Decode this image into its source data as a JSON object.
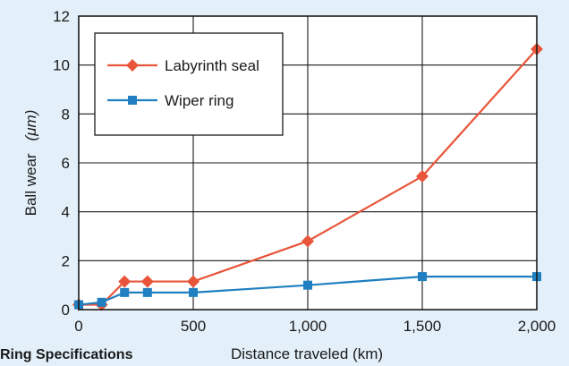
{
  "caption": "Ring Specifications",
  "chart_data": {
    "type": "line",
    "xlabel": "Distance traveled (km)",
    "ylabel_main": "Ball wear",
    "ylabel_unit": "(μm)",
    "xlim": [
      0,
      2000
    ],
    "ylim": [
      0,
      12
    ],
    "x_ticks": [
      0,
      500,
      1000,
      1500,
      2000
    ],
    "x_tick_labels": [
      "0",
      "500",
      "1,000",
      "1,500",
      "2,000"
    ],
    "y_ticks": [
      0,
      2,
      4,
      6,
      8,
      10,
      12
    ],
    "y_tick_labels": [
      "0",
      "2",
      "4",
      "6",
      "8",
      "10",
      "12"
    ],
    "grid": true,
    "legend_position": "top-left",
    "series": [
      {
        "name": "Labyrinth seal",
        "color": "#e8553a",
        "marker": "diamond",
        "x": [
          0,
          100,
          200,
          300,
          500,
          1000,
          1500,
          2000
        ],
        "y": [
          0.2,
          0.2,
          1.15,
          1.15,
          1.15,
          2.8,
          5.45,
          10.65
        ]
      },
      {
        "name": "Wiper ring",
        "color": "#1f7fc0",
        "marker": "square",
        "x": [
          0,
          100,
          200,
          300,
          500,
          1000,
          1500,
          2000
        ],
        "y": [
          0.2,
          0.3,
          0.7,
          0.7,
          0.7,
          1.0,
          1.35,
          1.35
        ]
      }
    ]
  }
}
